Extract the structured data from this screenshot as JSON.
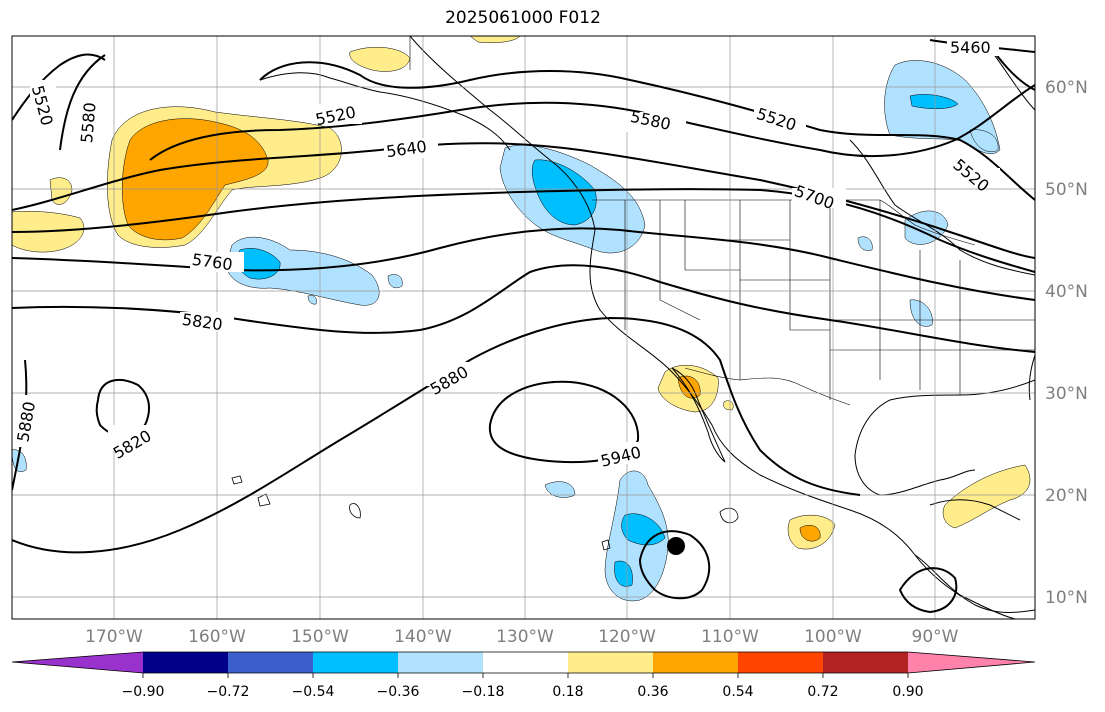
{
  "title": "2025061000 F012",
  "map": {
    "lon_labels": [
      "170°W",
      "160°W",
      "150°W",
      "140°W",
      "130°W",
      "120°W",
      "110°W",
      "100°W",
      "90°W"
    ],
    "lat_labels": [
      "60°N",
      "50°N",
      "40°N",
      "30°N",
      "20°N",
      "10°N"
    ],
    "contour_labels": [
      "5460",
      "5520",
      "5520",
      "5520",
      "5520",
      "5580",
      "5580",
      "5640",
      "5700",
      "5760",
      "5820",
      "5820",
      "5880",
      "5880",
      "5940"
    ],
    "marker": "storm-position-dot"
  },
  "colorbar": {
    "ticks": [
      "−0.90",
      "−0.72",
      "−0.54",
      "−0.36",
      "−0.18",
      "0.18",
      "0.36",
      "0.54",
      "0.72",
      "0.90"
    ],
    "colors": [
      "#9932cc",
      "#00008b",
      "#3a5fcd",
      "#00bfff",
      "#b0e2ff",
      "#ffffff",
      "#ffec8b",
      "#ffa500",
      "#ff4500",
      "#b22222",
      "#ff82ab"
    ]
  }
}
